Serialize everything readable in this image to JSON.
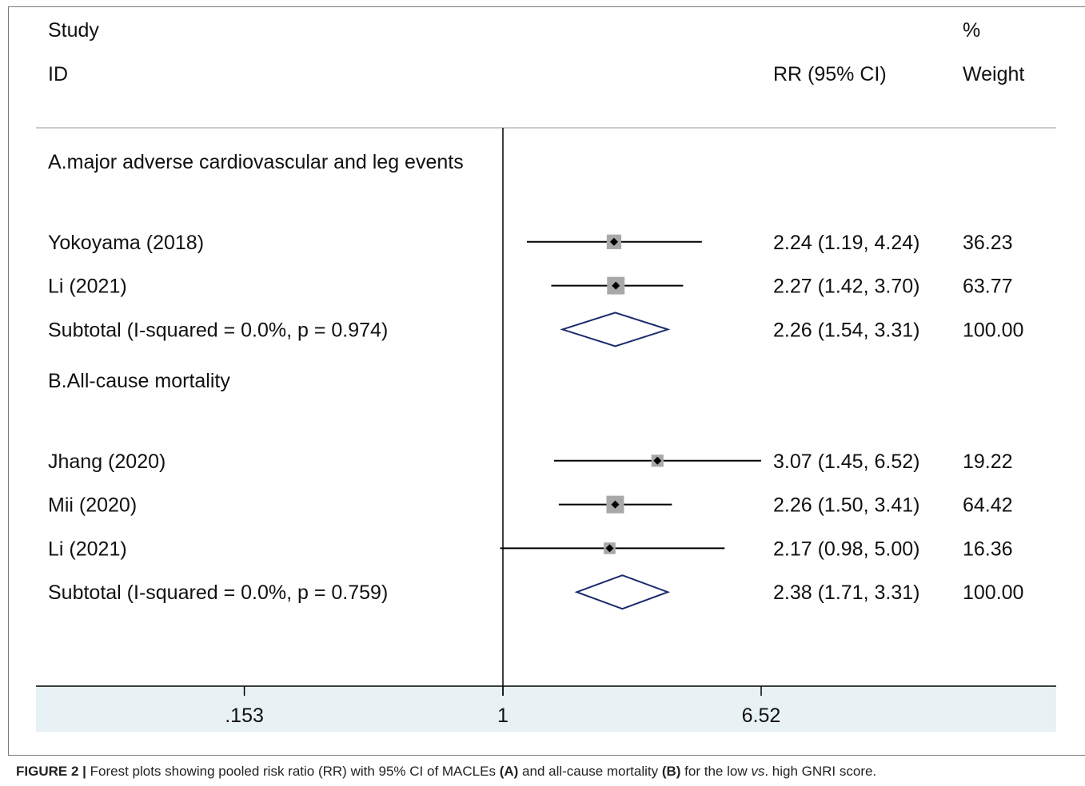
{
  "chart_data": {
    "type": "forest",
    "header": {
      "study_line1": "Study",
      "study_line2": "ID",
      "rr_label": "RR (95% CI)",
      "weight_line1": "%",
      "weight_line2": "Weight"
    },
    "x_scale": "log",
    "reference_line": 1,
    "xticks": [
      {
        "value": 0.153,
        "label": ".153"
      },
      {
        "value": 1,
        "label": "1"
      },
      {
        "value": 6.52,
        "label": "6.52"
      }
    ],
    "rows": [
      {
        "kind": "group",
        "label": "A.major adverse cardiovascular and leg events"
      },
      {
        "kind": "study",
        "label": "Yokoyama  (2018)",
        "rr": 2.24,
        "lo": 1.19,
        "hi": 4.24,
        "ci_text": "2.24 (1.19, 4.24)",
        "weight": "36.23"
      },
      {
        "kind": "study",
        "label": "Li (2021)",
        "rr": 2.27,
        "lo": 1.42,
        "hi": 3.7,
        "ci_text": "2.27 (1.42, 3.70)",
        "weight": "63.77"
      },
      {
        "kind": "subtotal",
        "label": "Subtotal  (I-squared = 0.0%, p = 0.974)",
        "rr": 2.26,
        "lo": 1.54,
        "hi": 3.31,
        "ci_text": "2.26 (1.54, 3.31)",
        "weight": "100.00"
      },
      {
        "kind": "blank"
      },
      {
        "kind": "group",
        "label": "B.All-cause mortality"
      },
      {
        "kind": "study",
        "label": "Jhang  (2020)",
        "rr": 3.07,
        "lo": 1.45,
        "hi": 6.52,
        "ci_text": "3.07 (1.45, 6.52)",
        "weight": "19.22"
      },
      {
        "kind": "study",
        "label": "Mii (2020)",
        "rr": 2.26,
        "lo": 1.5,
        "hi": 3.41,
        "ci_text": "2.26 (1.50, 3.41)",
        "weight": "64.42"
      },
      {
        "kind": "study",
        "label": "Li (2021)",
        "rr": 2.17,
        "lo": 0.98,
        "hi": 5.0,
        "ci_text": "2.17 (0.98, 5.00)",
        "weight": "16.36"
      },
      {
        "kind": "subtotal",
        "label": "Subtotal  (I-squared = 0.0%, p = 0.759)",
        "rr": 2.38,
        "lo": 1.71,
        "hi": 3.31,
        "ci_text": "2.38 (1.71, 3.31)",
        "weight": "100.00"
      }
    ]
  },
  "caption": {
    "figure_label": "FIGURE 2 |",
    "text_1": " Forest plots showing pooled risk ratio (RR) with 95% CI of MACLEs ",
    "bold_a": "(A)",
    "text_2": " and all-cause mortality ",
    "bold_b": "(B)",
    "text_3": " for the low ",
    "italic_vs": "vs",
    "text_4": ". high GNRI score."
  }
}
